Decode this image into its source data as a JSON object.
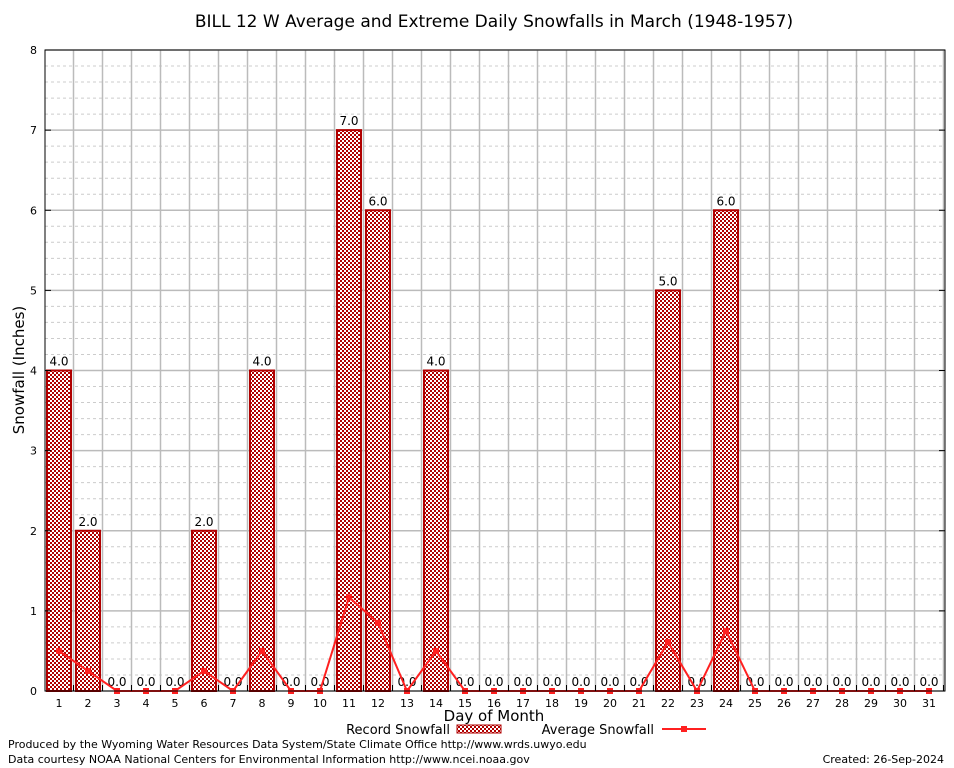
{
  "chart_data": {
    "type": "bar",
    "title": "BILL 12 W Average and Extreme Daily Snowfalls in March (1948-1957)",
    "xlabel": "Day of Month",
    "ylabel": "Snowfall (Inches)",
    "ylim": [
      0,
      8
    ],
    "yticks": [
      0,
      1,
      2,
      3,
      4,
      5,
      6,
      7,
      8
    ],
    "grid": true,
    "categories": [
      "1",
      "2",
      "3",
      "4",
      "5",
      "6",
      "7",
      "8",
      "9",
      "10",
      "11",
      "12",
      "13",
      "14",
      "15",
      "16",
      "17",
      "18",
      "19",
      "20",
      "21",
      "22",
      "23",
      "24",
      "25",
      "26",
      "27",
      "28",
      "29",
      "30",
      "31"
    ],
    "series": [
      {
        "name": "Record Snowfall",
        "type": "bar",
        "color": "#b00000",
        "values": [
          4,
          2,
          0,
          0,
          0,
          2,
          0,
          4,
          0,
          0,
          7,
          6,
          0,
          4,
          0,
          0,
          0,
          0,
          0,
          0,
          0,
          5,
          0,
          6,
          0,
          0,
          0,
          0,
          0,
          0,
          0
        ],
        "labels": [
          "4.0",
          "2.0",
          "0.0",
          "0.0",
          "0.0",
          "2.0",
          "0.0",
          "4.0",
          "0.0",
          "0.0",
          "7.0",
          "6.0",
          "0.0",
          "4.0",
          "0.0",
          "0.0",
          "0.0",
          "0.0",
          "0.0",
          "0.0",
          "0.0",
          "5.0",
          "0.0",
          "6.0",
          "0.0",
          "0.0",
          "0.0",
          "0.0",
          "0.0",
          "0.0",
          "0.0"
        ]
      },
      {
        "name": "Average Snowfall",
        "type": "line",
        "color": "#ff2020",
        "values": [
          0.5,
          0.25,
          0,
          0,
          0,
          0.25,
          0,
          0.5,
          0,
          0,
          1.17,
          0.85,
          0,
          0.5,
          0,
          0,
          0,
          0,
          0,
          0,
          0,
          0.61,
          0,
          0.75,
          0,
          0,
          0,
          0,
          0,
          0,
          0
        ]
      }
    ],
    "legend": "bottom-center"
  },
  "footer": {
    "line1": "Produced by the Wyoming Water Resources Data System/State Climate Office http://www.wrds.uwyo.edu",
    "line2": "Data courtesy NOAA National Centers for Environmental Information http://www.ncei.noaa.gov",
    "created": "Created:  26-Sep-2024"
  }
}
